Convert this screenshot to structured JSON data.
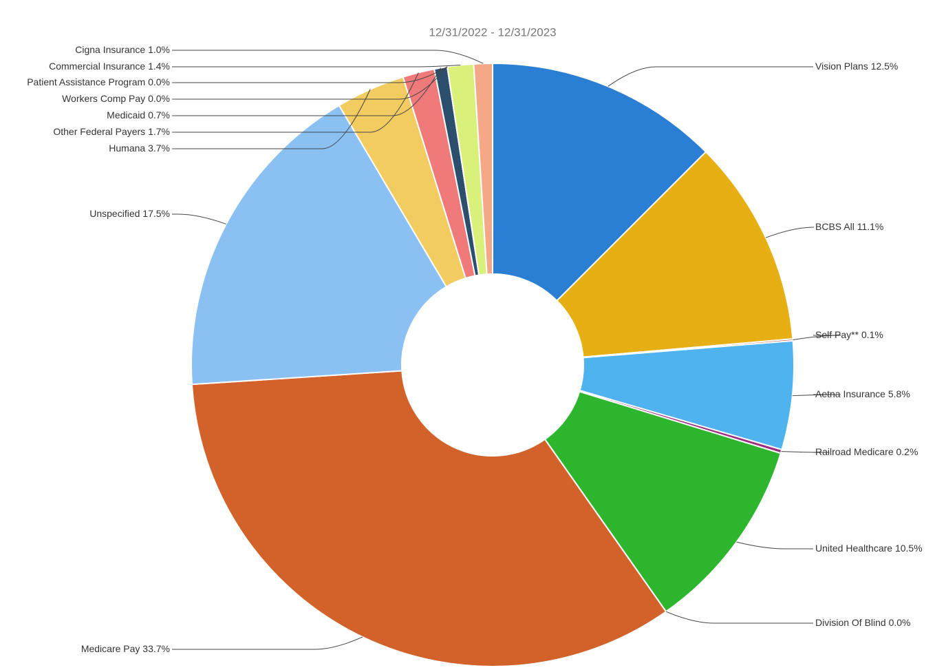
{
  "chart_data": {
    "type": "donut",
    "title": "12/31/2022 - 12/31/2023",
    "categories": [
      "Vision Plans",
      "BCBS All",
      "Self Pay**",
      "Aetna Insurance",
      "Railroad Medicare",
      "United Healthcare",
      "Division Of Blind",
      "Medicare Pay",
      "Unspecified",
      "Humana",
      "Other Federal Payers",
      "Medicaid",
      "Workers Comp Pay",
      "Patient Assistance Program",
      "Commercial Insurance",
      "Cigna Insurance"
    ],
    "values": [
      12.5,
      11.1,
      0.1,
      5.8,
      0.2,
      10.5,
      0,
      33.7,
      17.5,
      3.7,
      1.7,
      0.7,
      0,
      0,
      1.4,
      1.0
    ],
    "value_labels": [
      "12.5%",
      "11.1%",
      "0.1%",
      "5.8%",
      "0.2%",
      "10.5%",
      "0.0%",
      "33.7%",
      "17.5%",
      "3.7%",
      "1.7%",
      "0.7%",
      "0.0%",
      "0.0%",
      "1.4%",
      "1.0%"
    ],
    "colors": [
      "#2a7fd4",
      "#e6b014",
      "#c0504d",
      "#4fb3ef",
      "#9b2d7f",
      "#2eb52e",
      "#555555",
      "#d2622a",
      "#8ac0f2",
      "#f2cc60",
      "#f07a7a",
      "#2c4f6e",
      "#333333",
      "#888888",
      "#d9f07a",
      "#f4a888"
    ]
  }
}
